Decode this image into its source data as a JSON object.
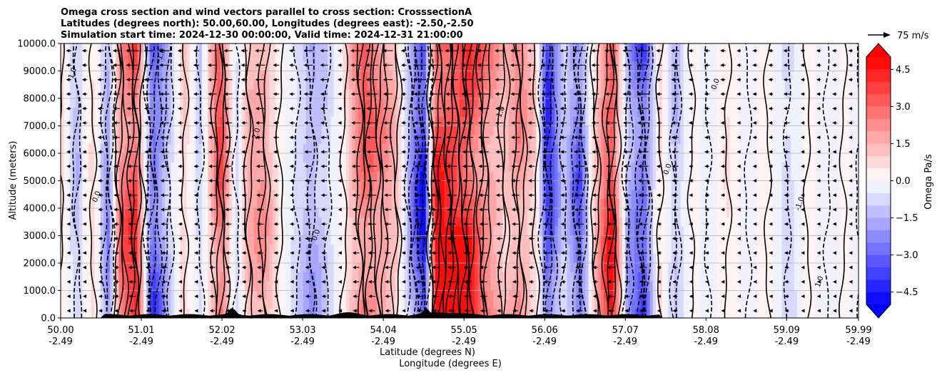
{
  "chart_data": {
    "type": "heatmap",
    "title": [
      "Omega cross section and wind vectors parallel to cross section: CrosssectionA",
      "Latitudes (degrees north): 50.00,60.00, Longitudes (degrees east): -2.50,-2.50",
      "Simulation start time: 2024-12-30 00:00:00, Valid time: 2024-12-31 21:00:00"
    ],
    "ylabel": "Altitude (meters)",
    "xlabel_lines": [
      "Latitude (degrees N)",
      "Longitude (degrees E)"
    ],
    "ylim": [
      0,
      10000
    ],
    "y_ticks": [
      "0.0",
      "1000.0",
      "2000.0",
      "3000.0",
      "4000.0",
      "5000.0",
      "6000.0",
      "7000.0",
      "8000.0",
      "9000.0",
      "10000.0"
    ],
    "x_ticks": [
      {
        "lat": "50.00",
        "lon": "-2.49"
      },
      {
        "lat": "51.01",
        "lon": "-2.49"
      },
      {
        "lat": "52.02",
        "lon": "-2.49"
      },
      {
        "lat": "53.03",
        "lon": "-2.49"
      },
      {
        "lat": "54.04",
        "lon": "-2.49"
      },
      {
        "lat": "55.05",
        "lon": "-2.49"
      },
      {
        "lat": "56.06",
        "lon": "-2.49"
      },
      {
        "lat": "57.07",
        "lon": "-2.49"
      },
      {
        "lat": "58.08",
        "lon": "-2.49"
      },
      {
        "lat": "59.09",
        "lon": "-2.49"
      },
      {
        "lat": "59.99",
        "lon": "-2.49"
      }
    ],
    "horizontal_grid": true,
    "colorbar": {
      "label": "Omega Pa/s",
      "range": [
        -5.0,
        5.0
      ],
      "ticks": [
        "4.5",
        "3.0",
        "1.5",
        "0.0",
        "−1.5",
        "−3.0",
        "−4.5"
      ],
      "extend": "both",
      "colormap": "bwr",
      "levels": 20
    },
    "wind_reference": {
      "label": "75 m/s"
    },
    "contour_labels": [
      "1.0",
      "0.0",
      "-1.0",
      "2.0",
      "0.0",
      "-1.0",
      "0.0",
      "0.0",
      "-1.0",
      "1.0"
    ],
    "omega_profile": [
      {
        "lat": 50.0,
        "omega": 0.8
      },
      {
        "lat": 50.2,
        "omega": -1.5
      },
      {
        "lat": 50.4,
        "omega": 0.9
      },
      {
        "lat": 50.6,
        "omega": -2.5
      },
      {
        "lat": 50.75,
        "omega": 3.0
      },
      {
        "lat": 50.95,
        "omega": 4.5
      },
      {
        "lat": 51.15,
        "omega": -4.0
      },
      {
        "lat": 51.35,
        "omega": -1.5
      },
      {
        "lat": 51.55,
        "omega": 1.2
      },
      {
        "lat": 51.75,
        "omega": -1.2
      },
      {
        "lat": 52.0,
        "omega": 4.0
      },
      {
        "lat": 52.2,
        "omega": -1.0
      },
      {
        "lat": 52.35,
        "omega": 1.8
      },
      {
        "lat": 52.55,
        "omega": 2.2
      },
      {
        "lat": 52.75,
        "omega": 0.2
      },
      {
        "lat": 52.95,
        "omega": -0.8
      },
      {
        "lat": 53.15,
        "omega": -2.0
      },
      {
        "lat": 53.35,
        "omega": -1.0
      },
      {
        "lat": 53.55,
        "omega": 0.5
      },
      {
        "lat": 53.8,
        "omega": 3.5
      },
      {
        "lat": 54.0,
        "omega": 2.5
      },
      {
        "lat": 54.2,
        "omega": 1.5
      },
      {
        "lat": 54.4,
        "omega": -2.5
      },
      {
        "lat": 54.55,
        "omega": -5.0
      },
      {
        "lat": 54.7,
        "omega": 5.0
      },
      {
        "lat": 54.9,
        "omega": 5.0
      },
      {
        "lat": 55.1,
        "omega": 5.0
      },
      {
        "lat": 55.3,
        "omega": 3.0
      },
      {
        "lat": 55.55,
        "omega": 1.5
      },
      {
        "lat": 55.75,
        "omega": 2.5
      },
      {
        "lat": 55.95,
        "omega": 1.0
      },
      {
        "lat": 56.1,
        "omega": -4.5
      },
      {
        "lat": 56.3,
        "omega": -1.0
      },
      {
        "lat": 56.5,
        "omega": -3.5
      },
      {
        "lat": 56.7,
        "omega": 1.5
      },
      {
        "lat": 56.9,
        "omega": 5.0
      },
      {
        "lat": 57.1,
        "omega": -2.0
      },
      {
        "lat": 57.3,
        "omega": -4.0
      },
      {
        "lat": 57.5,
        "omega": 0.8
      },
      {
        "lat": 57.7,
        "omega": -1.5
      },
      {
        "lat": 57.9,
        "omega": 0.3
      },
      {
        "lat": 58.1,
        "omega": -0.5
      },
      {
        "lat": 58.35,
        "omega": 0.6
      },
      {
        "lat": 58.6,
        "omega": -0.4
      },
      {
        "lat": 58.85,
        "omega": 0.4
      },
      {
        "lat": 59.1,
        "omega": -1.0
      },
      {
        "lat": 59.35,
        "omega": 0.3
      },
      {
        "lat": 59.6,
        "omega": -0.4
      },
      {
        "lat": 59.8,
        "omega": 0.1
      },
      {
        "lat": 59.99,
        "omega": -0.2
      }
    ]
  }
}
